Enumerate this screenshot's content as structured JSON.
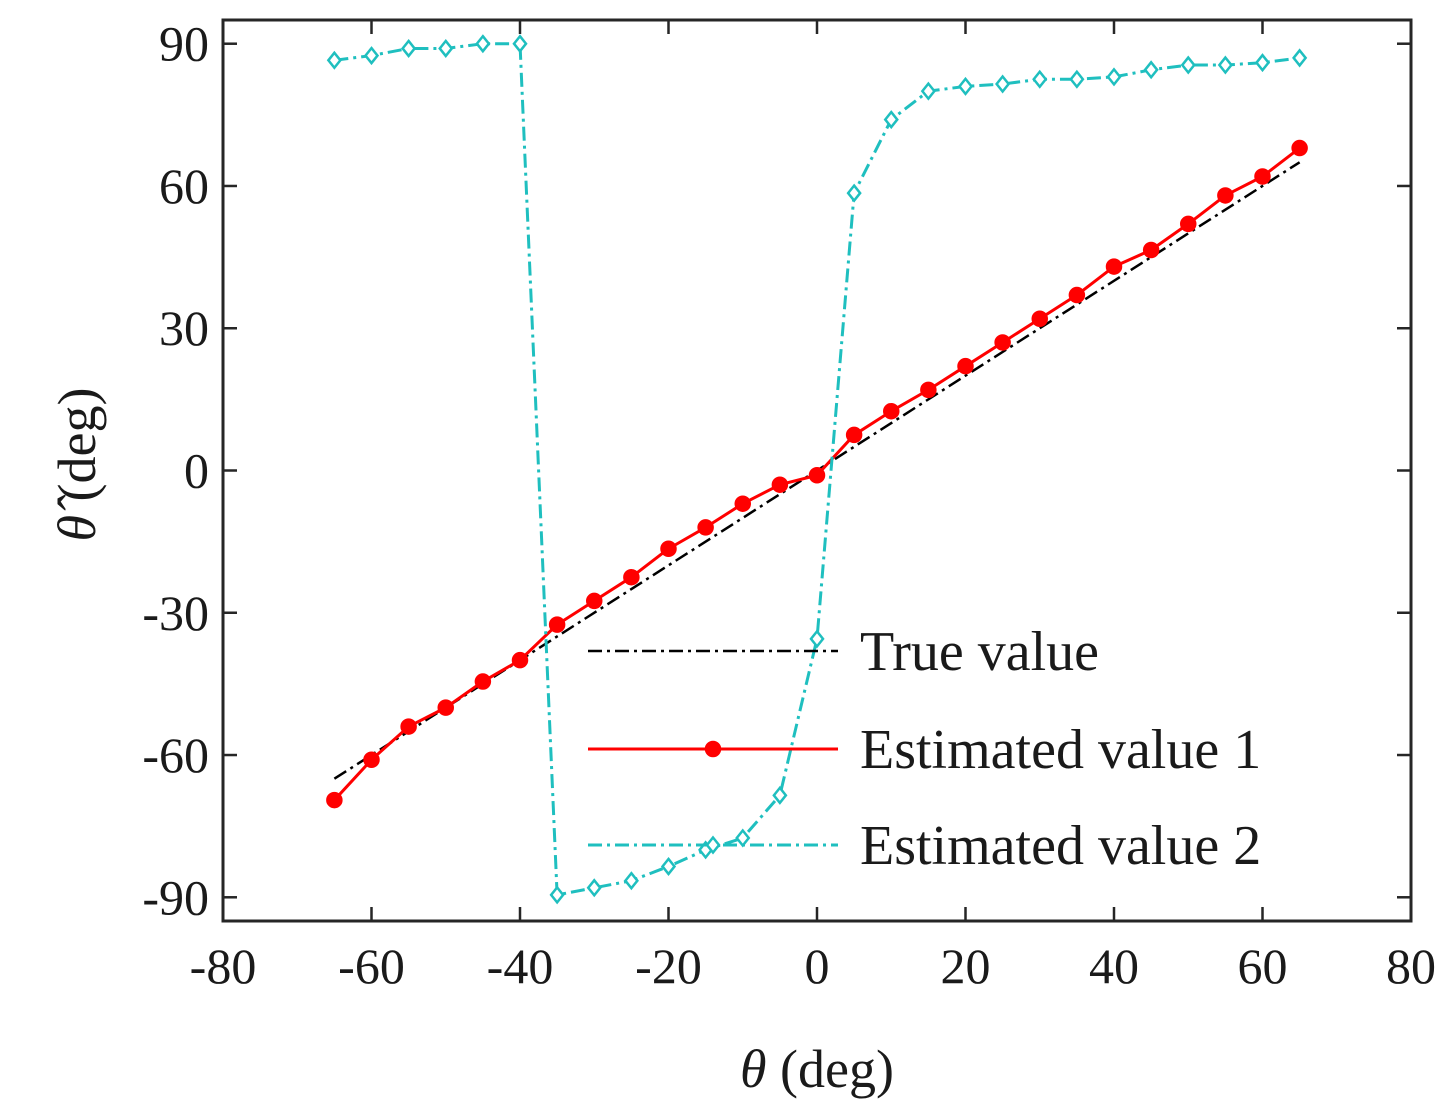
{
  "chart_data": {
    "type": "line",
    "title": "",
    "xlabel_symbol": "θ",
    "xlabel_unit": "(deg)",
    "ylabel_symbol": "θ̂",
    "ylabel_unit": "(deg)",
    "xlim": [
      -80,
      80
    ],
    "ylim": [
      -95,
      95
    ],
    "xticks": [
      -80,
      -60,
      -40,
      -20,
      0,
      20,
      40,
      60,
      80
    ],
    "yticks": [
      -90,
      -60,
      -30,
      0,
      30,
      60,
      90
    ],
    "grid": false,
    "legend_position": "bottom-right",
    "x": [
      -65,
      -60,
      -55,
      -50,
      -45,
      -40,
      -35,
      -30,
      -25,
      -20,
      -15,
      -10,
      -5,
      0,
      5,
      10,
      15,
      20,
      25,
      30,
      35,
      40,
      45,
      50,
      55,
      60,
      65
    ],
    "series": [
      {
        "name": "True value",
        "color": "#000000",
        "style": "dashdot",
        "marker": "none",
        "x": [
          -65,
          65
        ],
        "values": [
          -65,
          65
        ]
      },
      {
        "name": "Estimated value 1",
        "color": "#ff0000",
        "style": "solid",
        "marker": "circle",
        "values": [
          -69.5,
          -61,
          -54,
          -50,
          -44.5,
          -40,
          -32.5,
          -27.5,
          -22.5,
          -16.5,
          -12,
          -7,
          -3,
          -1,
          7.5,
          12.5,
          17,
          22,
          27,
          32,
          37,
          43,
          46.5,
          52,
          58,
          62,
          68
        ]
      },
      {
        "name": "Estimated value 2",
        "color": "#1fbfbf",
        "style": "dashdot",
        "marker": "diamond",
        "values": [
          86.5,
          87.5,
          89,
          89,
          90,
          90,
          -89.5,
          -88,
          -86.5,
          -83.5,
          -80,
          -77.5,
          -68.5,
          -35.5,
          58.5,
          74,
          80,
          81,
          81.5,
          82.5,
          82.5,
          83,
          84.5,
          85.5,
          85.5,
          86,
          87
        ]
      }
    ]
  }
}
